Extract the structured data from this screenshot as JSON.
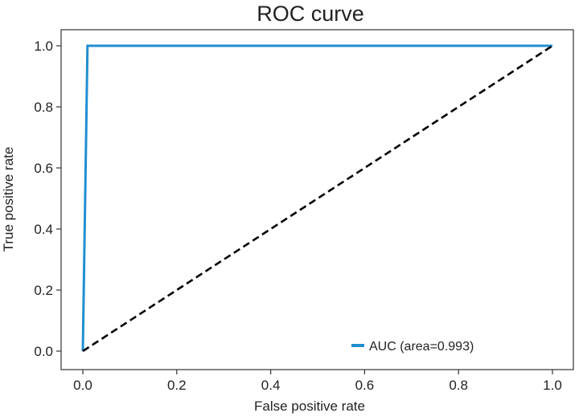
{
  "chart_data": {
    "type": "line",
    "title": "ROC curve",
    "xlabel": "False positive rate",
    "ylabel": "True positive rate",
    "xlim": [
      0.0,
      1.0
    ],
    "ylim": [
      0.0,
      1.0
    ],
    "x_ticks": [
      "0.0",
      "0.2",
      "0.4",
      "0.6",
      "0.8",
      "1.0"
    ],
    "y_ticks": [
      "0.0",
      "0.2",
      "0.4",
      "0.6",
      "0.8",
      "1.0"
    ],
    "grid": false,
    "legend_position": "lower-right",
    "series": [
      {
        "name": "AUC (area=0.993)",
        "style": "solid",
        "color": "#1f8fd0",
        "x": [
          0.0,
          0.01,
          1.0
        ],
        "y": [
          0.0,
          1.0,
          1.0
        ]
      },
      {
        "style": "dashed",
        "color": "#000000",
        "x": [
          0.0,
          1.0
        ],
        "y": [
          0.0,
          1.0
        ]
      }
    ]
  }
}
